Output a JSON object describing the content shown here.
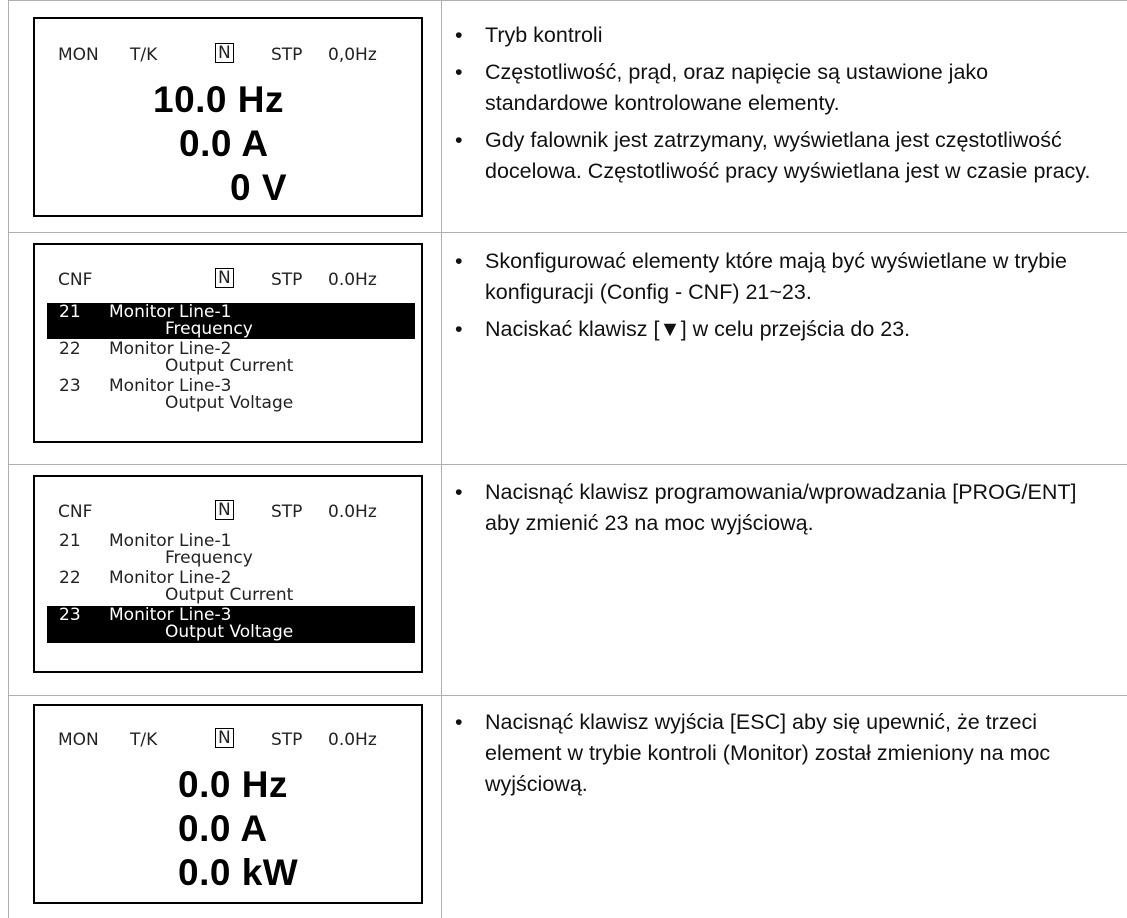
{
  "rows": [
    {
      "lcd": {
        "mode": "MON",
        "tk": "T/K",
        "n": "N",
        "stp": "STP",
        "freq": "0,0Hz",
        "lines": [
          "10.0 Hz",
          "0.0 A",
          "0 V"
        ]
      },
      "bullets": [
        "Tryb kontroli",
        "Częstotliwość, prąd, oraz napięcie są ustawione jako standardowe kontrolowane elementy.",
        "Gdy falownik jest zatrzymany, wyświetlana jest częstotliwość docelowa. Częstotliwość pracy wyświetlana jest w czasie pracy."
      ]
    },
    {
      "lcd": {
        "mode": "CNF",
        "n": "N",
        "stp": "STP",
        "freq": "0.0Hz",
        "items": [
          {
            "num": "21",
            "name": "Monitor Line-1",
            "value": "Frequency",
            "selected": true
          },
          {
            "num": "22",
            "name": "Monitor Line-2",
            "value": "Output Current",
            "selected": false
          },
          {
            "num": "23",
            "name": "Monitor Line-3",
            "value": "Output Voltage",
            "selected": false
          }
        ]
      },
      "bullets": [
        "Skonfigurować elementy które mają być wyświetlane w trybie konfiguracji (Config - CNF) 21~23.",
        "Naciskać klawisz [▼] w celu przejścia do 23."
      ]
    },
    {
      "lcd": {
        "mode": "CNF",
        "n": "N",
        "stp": "STP",
        "freq": "0.0Hz",
        "items": [
          {
            "num": "21",
            "name": "Monitor Line-1",
            "value": "Frequency",
            "selected": false
          },
          {
            "num": "22",
            "name": "Monitor Line-2",
            "value": "Output Current",
            "selected": false
          },
          {
            "num": "23",
            "name": "Monitor Line-3",
            "value": "Output Voltage",
            "selected": true
          }
        ]
      },
      "bullets": [
        "Nacisnąć klawisz programowania/wprowadzania [PROG/ENT] aby zmienić 23 na moc wyjściową."
      ]
    },
    {
      "lcd": {
        "mode": "MON",
        "tk": "T/K",
        "n": "N",
        "stp": "STP",
        "freq": "0.0Hz",
        "lines": [
          "0.0 Hz",
          "0.0 A",
          "0.0 kW"
        ]
      },
      "bullets": [
        "Nacisnąć klawisz wyjścia [ESC] aby się upewnić, że trzeci element w trybie kontroli (Monitor) został zmieniony na moc wyjściową."
      ]
    }
  ]
}
